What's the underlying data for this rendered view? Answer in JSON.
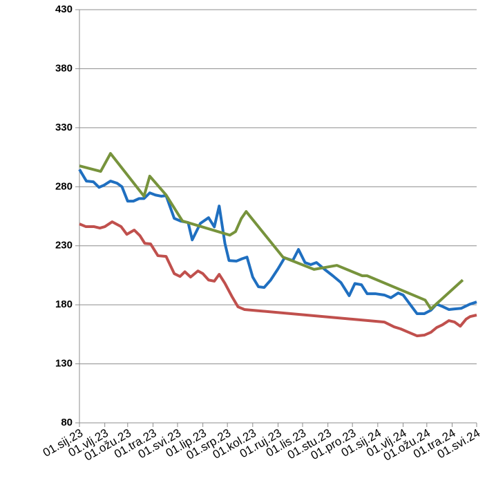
{
  "chart_data": {
    "type": "line",
    "xlim": [
      0,
      486
    ],
    "xticks": [
      {
        "value": 0,
        "label": "01.sij.23"
      },
      {
        "value": 31,
        "label": "01.vlj.23"
      },
      {
        "value": 59,
        "label": "01.ožu.23"
      },
      {
        "value": 90,
        "label": "01.tra.23"
      },
      {
        "value": 120,
        "label": "01.svi.23"
      },
      {
        "value": 151,
        "label": "01.lip.23"
      },
      {
        "value": 181,
        "label": "01.srp.23"
      },
      {
        "value": 212,
        "label": "01.kol.23"
      },
      {
        "value": 243,
        "label": "01.ruj.23"
      },
      {
        "value": 273,
        "label": "01.lis.23"
      },
      {
        "value": 304,
        "label": "01.stu.23"
      },
      {
        "value": 334,
        "label": "01.pro.23"
      },
      {
        "value": 365,
        "label": "01.sij.24"
      },
      {
        "value": 396,
        "label": "01.vlj.24"
      },
      {
        "value": 425,
        "label": "01.ožu.24"
      },
      {
        "value": 456,
        "label": "01.tra.24"
      },
      {
        "value": 486,
        "label": "01.svi.24"
      }
    ],
    "ylim": [
      80,
      430
    ],
    "yticks": [
      80,
      130,
      180,
      230,
      280,
      330,
      380,
      430
    ],
    "grid": true,
    "series": [
      {
        "color": "#1f6fc0",
        "x": [
          0,
          8.5,
          17,
          24,
          30,
          38,
          46,
          52,
          59,
          66,
          73,
          79,
          86,
          93,
          100,
          106,
          116,
          124,
          133,
          138,
          148,
          158,
          165,
          171,
          178,
          183,
          192,
          199,
          205,
          212,
          219,
          226,
          234,
          243,
          251,
          261,
          268,
          276,
          283,
          290,
          300,
          310,
          320,
          330,
          337,
          345,
          352,
          362,
          373,
          381,
          390,
          396,
          403,
          413,
          422,
          430,
          437,
          445,
          452,
          459,
          467,
          478,
          486
        ],
        "values": [
          294.7,
          284.8,
          284.2,
          279.5,
          281.3,
          284.8,
          283,
          280,
          267.8,
          267.8,
          270,
          270,
          274.8,
          273,
          272,
          272.5,
          253.2,
          250.9,
          249.7,
          235,
          249,
          253.8,
          246,
          263.7,
          232,
          217.5,
          217,
          219,
          220.4,
          203.5,
          195.3,
          194.7,
          201,
          210.5,
          219.8,
          217.5,
          226.9,
          215.8,
          214,
          215.8,
          210,
          204.6,
          198.8,
          187.7,
          198,
          197,
          189.4,
          189.4,
          188.3,
          186,
          190,
          188.3,
          181.8,
          172.5,
          172.5,
          175.4,
          180.6,
          178.3,
          176,
          176.5,
          177,
          180.6,
          182.4
        ]
      },
      {
        "color": "#c0504d",
        "x": [
          0,
          8,
          18,
          25,
          31,
          40,
          51,
          58,
          67,
          74,
          80,
          87,
          96,
          106,
          116,
          123,
          129,
          136,
          145,
          151,
          158,
          165,
          171,
          178,
          187,
          194,
          202,
          373,
          385,
          393,
          401,
          413,
          422,
          430,
          437,
          444,
          452,
          459,
          466,
          473,
          478,
          486
        ],
        "values": [
          248.5,
          246.2,
          246.2,
          245,
          246.2,
          250.3,
          246.2,
          239.7,
          243.3,
          238.6,
          232,
          231.6,
          221.6,
          221,
          206.4,
          204,
          208,
          203.5,
          208.7,
          206.4,
          201,
          200,
          205.8,
          198.2,
          186.5,
          178.3,
          176,
          165.4,
          161.3,
          159.6,
          157.2,
          153.7,
          154.3,
          156.7,
          160.7,
          163,
          166.6,
          165.4,
          161.9,
          167.8,
          170,
          171.3
        ]
      },
      {
        "color": "#77933c",
        "x": [
          0,
          26,
          38,
          79,
          86,
          106,
          126,
          184,
          191,
          198,
          204,
          249,
          287,
          315,
          346,
          352,
          423,
          430,
          469
        ],
        "values": [
          297.7,
          293,
          308.2,
          272,
          289,
          273,
          251,
          239,
          242,
          253,
          259,
          220.4,
          210,
          213.4,
          204.6,
          204.6,
          184,
          176.5,
          201
        ]
      }
    ]
  }
}
